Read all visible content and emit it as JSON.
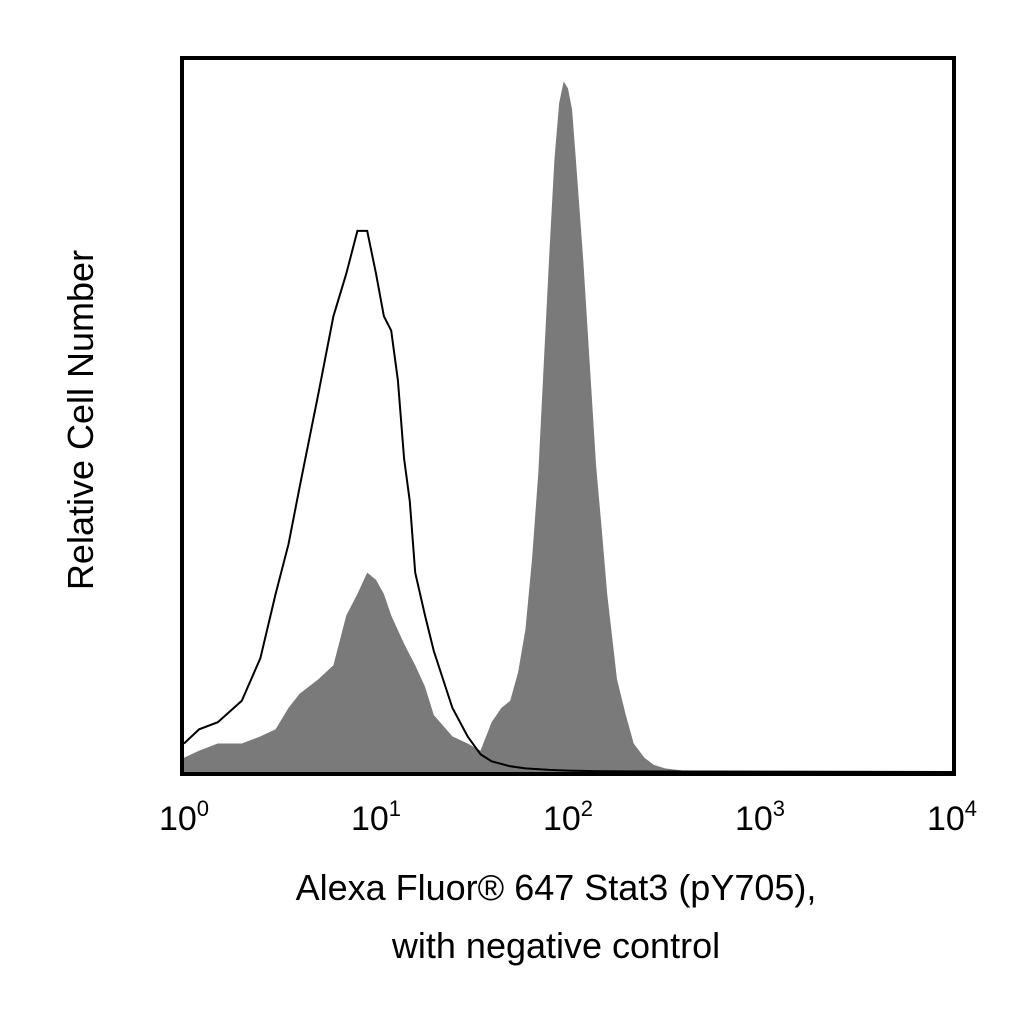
{
  "chart_data": {
    "type": "area",
    "title": "",
    "xlabel_lines": [
      "Alexa Fluor® 647 Stat3 (pY705),",
      "with negative control"
    ],
    "ylabel": "Relative Cell Number",
    "x_scale": "log",
    "xlim": [
      1,
      10000
    ],
    "ylim": [
      0,
      1
    ],
    "grid": false,
    "x_ticks": [
      {
        "base": "10",
        "exp": "0",
        "value": 1
      },
      {
        "base": "10",
        "exp": "1",
        "value": 10
      },
      {
        "base": "10",
        "exp": "2",
        "value": 100
      },
      {
        "base": "10",
        "exp": "3",
        "value": 1000
      },
      {
        "base": "10",
        "exp": "4",
        "value": 10000
      }
    ],
    "colors": {
      "filled": "#7a7a7a",
      "outline": "#000000",
      "frame": "#000000"
    },
    "series": [
      {
        "style": "filled",
        "x": [
          1,
          1.2,
          1.5,
          2,
          2.5,
          3,
          3.5,
          4,
          5,
          6,
          7,
          8,
          9,
          10,
          11,
          12,
          14,
          16,
          18,
          20,
          25,
          30,
          35,
          40,
          45,
          50,
          55,
          60,
          65,
          70,
          75,
          80,
          85,
          90,
          95,
          100,
          105,
          110,
          120,
          130,
          140,
          150,
          160,
          180,
          200,
          220,
          250,
          280,
          320,
          400,
          500,
          10000
        ],
        "y": [
          0.02,
          0.03,
          0.04,
          0.04,
          0.05,
          0.06,
          0.09,
          0.11,
          0.13,
          0.15,
          0.22,
          0.25,
          0.28,
          0.27,
          0.25,
          0.22,
          0.18,
          0.15,
          0.12,
          0.08,
          0.05,
          0.04,
          0.03,
          0.07,
          0.09,
          0.1,
          0.14,
          0.2,
          0.3,
          0.42,
          0.58,
          0.73,
          0.86,
          0.94,
          0.97,
          0.96,
          0.93,
          0.86,
          0.72,
          0.57,
          0.43,
          0.34,
          0.25,
          0.13,
          0.08,
          0.04,
          0.02,
          0.01,
          0.005,
          0.002,
          0,
          0
        ]
      },
      {
        "style": "outline",
        "x": [
          1,
          1.2,
          1.5,
          2,
          2.5,
          3,
          3.5,
          4,
          5,
          6,
          7,
          8,
          9,
          10,
          11,
          12,
          13,
          14,
          15,
          16,
          18,
          20,
          25,
          30,
          35,
          40,
          50,
          60,
          80,
          100,
          150,
          10000
        ],
        "y": [
          0.04,
          0.06,
          0.07,
          0.1,
          0.16,
          0.25,
          0.32,
          0.4,
          0.53,
          0.64,
          0.7,
          0.76,
          0.76,
          0.7,
          0.64,
          0.62,
          0.55,
          0.44,
          0.38,
          0.28,
          0.22,
          0.17,
          0.09,
          0.05,
          0.025,
          0.015,
          0.008,
          0.005,
          0.003,
          0.002,
          0.001,
          0
        ]
      }
    ]
  }
}
